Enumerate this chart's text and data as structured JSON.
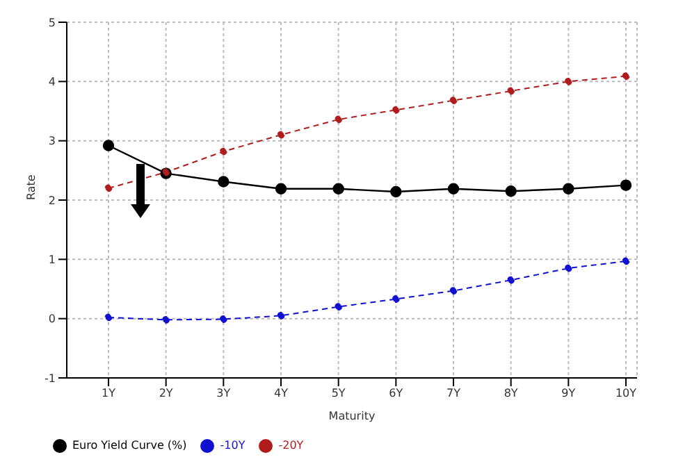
{
  "chart_data": {
    "type": "line",
    "xlabel": "Maturity",
    "ylabel": "Rate",
    "categories": [
      "1Y",
      "2Y",
      "3Y",
      "4Y",
      "5Y",
      "6Y",
      "7Y",
      "8Y",
      "9Y",
      "10Y"
    ],
    "series": [
      {
        "name": "Euro Yield Curve (%)",
        "color": "#000000",
        "line_style": "solid",
        "values": [
          2.92,
          2.45,
          2.31,
          2.19,
          2.19,
          2.14,
          2.19,
          2.15,
          2.19,
          2.25
        ]
      },
      {
        "name": "-10Y",
        "color": "#1010d0",
        "line_style": "dashed",
        "values": [
          0.02,
          -0.02,
          -0.01,
          0.05,
          0.2,
          0.33,
          0.47,
          0.65,
          0.85,
          0.97
        ]
      },
      {
        "name": "-20Y",
        "color": "#b01c1c",
        "line_style": "dashed",
        "values": [
          2.2,
          2.47,
          2.82,
          3.1,
          3.36,
          3.52,
          3.68,
          3.84,
          4.0,
          4.09
        ]
      }
    ],
    "ylim": [
      -1,
      5
    ],
    "yticks": [
      -1,
      0,
      1,
      2,
      3,
      4,
      5
    ],
    "grid": true,
    "legend": "bottom left",
    "marker": "circle"
  }
}
